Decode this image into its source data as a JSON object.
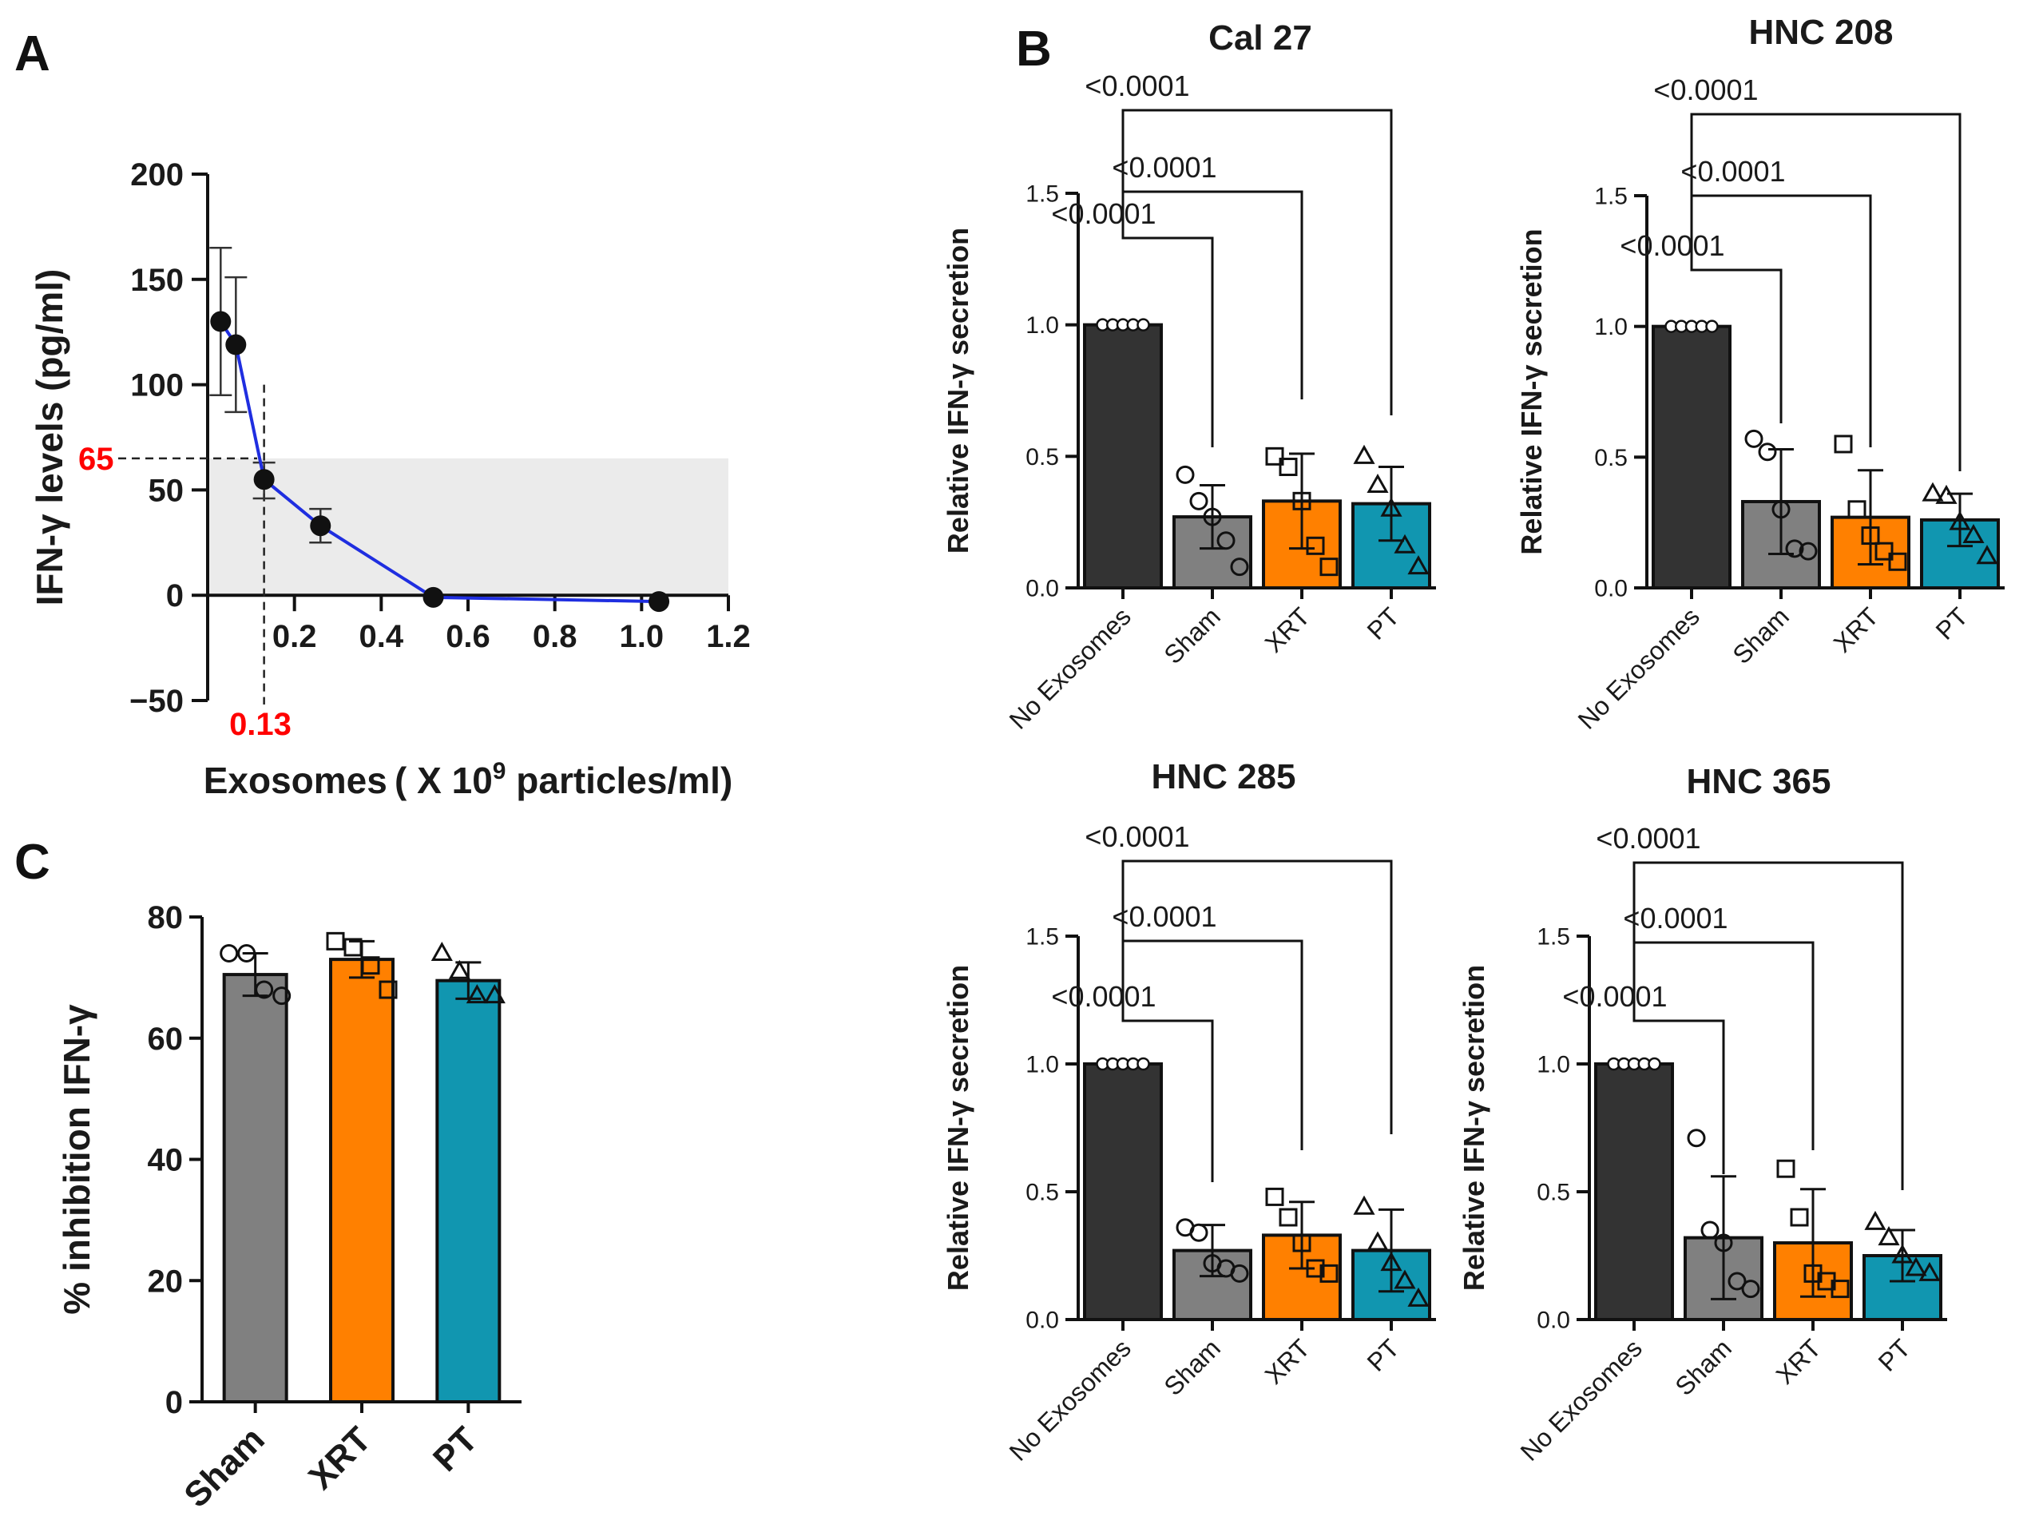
{
  "panel_labels": {
    "A": "A",
    "B": "B",
    "C": "C"
  },
  "colors": {
    "blue_line": "#1f2ee0",
    "no_exosomes": "#333333",
    "sham": "#808080",
    "xrt": "#ff8000",
    "pt": "#1196b0",
    "shade": "#ebebeb",
    "red_annotation": "#ff0000"
  },
  "chart_data": [
    {
      "id": "panelA",
      "type": "line",
      "title": "",
      "xlabel_main": "Exosomes ( X 10",
      "xlabel_sup": "9",
      "xlabel_tail": " particles/ml)",
      "ylabel": "IFN-γ levels (pg/ml)",
      "xlim": [
        0,
        1.2
      ],
      "ylim": [
        -50,
        200
      ],
      "xticks": [
        0.2,
        0.4,
        0.6,
        0.8,
        1.0,
        1.2
      ],
      "xtick_labels": [
        "0.2",
        "0.4",
        "0.6",
        "0.8",
        "1.0",
        "1.2"
      ],
      "yticks": [
        -50,
        0,
        50,
        100,
        150,
        200
      ],
      "ytick_labels": [
        "−50",
        "0",
        "50",
        "100",
        "150",
        "200"
      ],
      "x": [
        0.03,
        0.065,
        0.13,
        0.26,
        0.52,
        1.04
      ],
      "y": [
        130,
        119,
        55,
        33,
        -1,
        -3
      ],
      "err_low": [
        95,
        87,
        46,
        25,
        -1,
        -3
      ],
      "err_high": [
        165,
        151,
        63,
        41,
        -1,
        -3
      ],
      "shaded_region": {
        "y_from": 0,
        "y_to": 65
      },
      "annotation_y": {
        "value": 65,
        "label": "65"
      },
      "annotation_x": {
        "value": 0.13,
        "label": "0.13"
      }
    },
    {
      "id": "panelB_cal27",
      "type": "bar",
      "title": "Cal 27",
      "ylabel": "Relative IFN-γ secretion",
      "categories": [
        "No Exosomes",
        "Sham",
        "XRT",
        "PT"
      ],
      "values": [
        1.0,
        0.27,
        0.33,
        0.32
      ],
      "sd": [
        0.0,
        0.12,
        0.18,
        0.14
      ],
      "points": [
        [
          1,
          1,
          1,
          1,
          1
        ],
        [
          0.43,
          0.33,
          0.27,
          0.18,
          0.08
        ],
        [
          0.5,
          0.46,
          0.33,
          0.16,
          0.08
        ],
        [
          0.5,
          0.39,
          0.3,
          0.16,
          0.08
        ]
      ],
      "ylim": [
        0,
        1.5
      ],
      "yticks": [
        0.0,
        0.5,
        1.0,
        1.5
      ],
      "ytick_labels": [
        "0.0",
        "0.5",
        "1.0",
        "1.5"
      ],
      "pvalues": [
        "<0.0001",
        "<0.0001",
        "<0.0001"
      ]
    },
    {
      "id": "panelB_hnc208",
      "type": "bar",
      "title": "HNC 208",
      "ylabel": "Relative IFN-γ secretion",
      "categories": [
        "No Exosomes",
        "Sham",
        "XRT",
        "PT"
      ],
      "values": [
        1.0,
        0.33,
        0.27,
        0.26
      ],
      "sd": [
        0.0,
        0.2,
        0.18,
        0.1
      ],
      "points": [
        [
          1,
          1,
          1,
          1,
          1
        ],
        [
          0.57,
          0.52,
          0.3,
          0.15,
          0.14
        ],
        [
          0.55,
          0.3,
          0.2,
          0.14,
          0.1
        ],
        [
          0.36,
          0.35,
          0.25,
          0.2,
          0.12
        ]
      ],
      "ylim": [
        0,
        1.5
      ],
      "yticks": [
        0.0,
        0.5,
        1.0,
        1.5
      ],
      "ytick_labels": [
        "0.0",
        "0.5",
        "1.0",
        "1.5"
      ],
      "pvalues": [
        "<0.0001",
        "<0.0001",
        "<0.0001"
      ]
    },
    {
      "id": "panelB_hnc285",
      "type": "bar",
      "title": "HNC 285",
      "ylabel": "Relative IFN-γ secretion",
      "categories": [
        "No Exosomes",
        "Sham",
        "XRT",
        "PT"
      ],
      "values": [
        1.0,
        0.27,
        0.33,
        0.27
      ],
      "sd": [
        0.0,
        0.1,
        0.13,
        0.16
      ],
      "points": [
        [
          1,
          1,
          1,
          1,
          1
        ],
        [
          0.36,
          0.34,
          0.22,
          0.2,
          0.18
        ],
        [
          0.48,
          0.4,
          0.3,
          0.2,
          0.18
        ],
        [
          0.44,
          0.3,
          0.22,
          0.15,
          0.08
        ]
      ],
      "ylim": [
        0,
        1.5
      ],
      "yticks": [
        0.0,
        0.5,
        1.0,
        1.5
      ],
      "ytick_labels": [
        "0.0",
        "0.5",
        "1.0",
        "1.5"
      ],
      "pvalues": [
        "<0.0001",
        "<0.0001",
        "<0.0001"
      ]
    },
    {
      "id": "panelB_hnc365",
      "type": "bar",
      "title": "HNC 365",
      "ylabel": "Relative IFN-γ secretion",
      "categories": [
        "No Exosomes",
        "Sham",
        "XRT",
        "PT"
      ],
      "values": [
        1.0,
        0.32,
        0.3,
        0.25
      ],
      "sd": [
        0.0,
        0.24,
        0.21,
        0.1
      ],
      "points": [
        [
          1,
          1,
          1,
          1,
          1
        ],
        [
          0.71,
          0.35,
          0.3,
          0.15,
          0.12
        ],
        [
          0.59,
          0.4,
          0.18,
          0.15,
          0.12
        ],
        [
          0.38,
          0.32,
          0.25,
          0.2,
          0.18
        ]
      ],
      "ylim": [
        0,
        1.5
      ],
      "yticks": [
        0.0,
        0.5,
        1.0,
        1.5
      ],
      "ytick_labels": [
        "0.0",
        "0.5",
        "1.0",
        "1.5"
      ],
      "pvalues": [
        "<0.0001",
        "<0.0001",
        "<0.0001"
      ]
    },
    {
      "id": "panelC",
      "type": "bar",
      "title": "",
      "ylabel": "% inhibition IFN-γ",
      "categories": [
        "Sham",
        "XRT",
        "PT"
      ],
      "values": [
        70.5,
        73.0,
        69.5
      ],
      "sd": [
        3.5,
        3.0,
        3.0
      ],
      "points": [
        [
          74,
          74,
          68,
          67
        ],
        [
          76,
          75,
          72,
          68
        ],
        [
          74,
          71,
          67,
          67
        ]
      ],
      "ylim": [
        0,
        80
      ],
      "yticks": [
        0,
        20,
        40,
        60,
        80
      ],
      "ytick_labels": [
        "0",
        "20",
        "40",
        "60",
        "80"
      ]
    }
  ]
}
